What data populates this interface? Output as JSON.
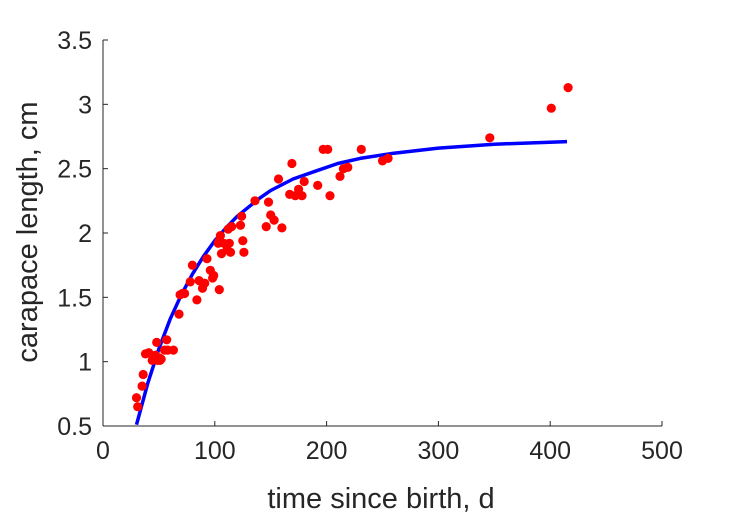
{
  "chart_data": {
    "type": "scatter",
    "title": "",
    "xlabel": "time since birth, d",
    "ylabel": "carapace length, cm",
    "xlim": [
      0,
      500
    ],
    "ylim": [
      0.5,
      3.5
    ],
    "xticks": [
      "0",
      "100",
      "200",
      "300",
      "400",
      "500"
    ],
    "yticks": [
      "0.5",
      "1",
      "1.5",
      "2",
      "2.5",
      "3",
      "3.5"
    ],
    "grid": false,
    "legend": "none",
    "colors": {
      "points": "#ff0000",
      "fit": "#0000ff",
      "axes": "#262626"
    },
    "series": [
      {
        "kind": "points",
        "x": [
          30,
          31,
          35,
          36,
          38,
          41,
          44,
          46,
          47,
          48,
          49,
          50,
          51,
          52,
          55,
          57,
          58,
          63,
          68,
          69,
          71,
          73,
          78,
          80,
          84,
          86,
          89,
          91,
          93,
          96,
          98,
          99,
          103,
          104,
          104,
          105,
          106,
          108,
          111,
          112,
          113,
          114,
          115,
          123,
          124,
          125,
          126,
          136,
          146,
          148,
          150,
          153,
          157,
          160,
          167,
          169,
          172,
          175,
          178,
          180,
          192,
          197,
          201,
          203,
          212,
          215,
          219,
          231,
          250,
          255,
          346,
          401,
          416
        ],
        "y": [
          0.72,
          0.65,
          0.81,
          0.9,
          1.06,
          1.07,
          1.01,
          1.04,
          1.05,
          1.15,
          1.01,
          1.03,
          1.01,
          1.02,
          1.09,
          1.17,
          1.09,
          1.09,
          1.37,
          1.52,
          1.53,
          1.53,
          1.62,
          1.75,
          1.48,
          1.63,
          1.57,
          1.61,
          1.8,
          1.71,
          1.65,
          1.67,
          1.92,
          1.94,
          1.56,
          1.98,
          1.84,
          1.92,
          1.87,
          2.03,
          1.92,
          1.85,
          2.05,
          2.06,
          2.13,
          1.94,
          1.85,
          2.25,
          2.05,
          2.24,
          2.14,
          2.1,
          2.42,
          2.04,
          2.3,
          2.54,
          2.29,
          2.34,
          2.29,
          2.4,
          2.37,
          2.65,
          2.65,
          2.29,
          2.44,
          2.5,
          2.51,
          2.65,
          2.56,
          2.58,
          2.74,
          2.97,
          3.13
        ]
      },
      {
        "kind": "fit-curve",
        "x": [
          30,
          40,
          50,
          60,
          70,
          80,
          90,
          100,
          110,
          120,
          130,
          140,
          150,
          170,
          190,
          210,
          230,
          260,
          300,
          350,
          415
        ],
        "y": [
          0.51,
          0.83,
          1.1,
          1.33,
          1.52,
          1.68,
          1.82,
          1.94,
          2.04,
          2.13,
          2.2,
          2.27,
          2.33,
          2.42,
          2.48,
          2.54,
          2.58,
          2.62,
          2.66,
          2.69,
          2.71
        ]
      }
    ]
  }
}
